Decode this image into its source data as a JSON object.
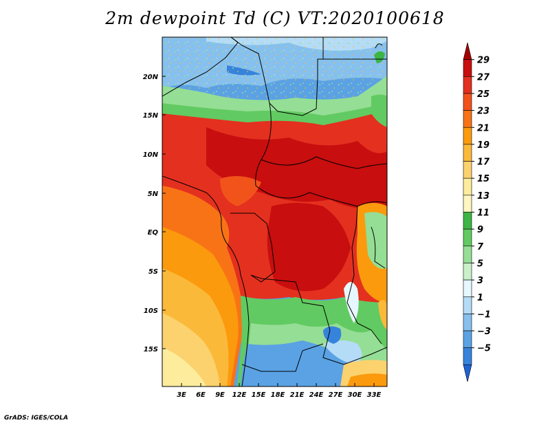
{
  "title": "2m dewpoint Td (C) VT:2020100618",
  "credit": "GrADS: IGES/COLA",
  "map": {
    "lat_labels": [
      {
        "text": "20N",
        "lat": 20
      },
      {
        "text": "15N",
        "lat": 15
      },
      {
        "text": "10N",
        "lat": 10
      },
      {
        "text": "5N",
        "lat": 5
      },
      {
        "text": "EQ",
        "lat": 0
      },
      {
        "text": "5S",
        "lat": -5
      },
      {
        "text": "10S",
        "lat": -10
      },
      {
        "text": "15S",
        "lat": -15
      }
    ],
    "lon_labels": [
      {
        "text": "3E",
        "lon": 3
      },
      {
        "text": "6E",
        "lon": 6
      },
      {
        "text": "9E",
        "lon": 9
      },
      {
        "text": "12E",
        "lon": 12
      },
      {
        "text": "15E",
        "lon": 15
      },
      {
        "text": "18E",
        "lon": 18
      },
      {
        "text": "21E",
        "lon": 21
      },
      {
        "text": "24E",
        "lon": 24
      },
      {
        "text": "27E",
        "lon": 27
      },
      {
        "text": "30E",
        "lon": 30
      },
      {
        "text": "33E",
        "lon": 33
      }
    ],
    "extent": {
      "lon_min": 0,
      "lon_max": 35,
      "lat_min": -20,
      "lat_max": 25
    }
  },
  "colorbar": {
    "labels": [
      "29",
      "27",
      "25",
      "23",
      "21",
      "19",
      "17",
      "15",
      "13",
      "11",
      "9",
      "7",
      "5",
      "3",
      "1",
      "−1",
      "−3",
      "−5"
    ],
    "colors": [
      "#a50000",
      "#c80e0e",
      "#e4301f",
      "#f2531b",
      "#f87316",
      "#fb9a0c",
      "#fbb93a",
      "#fcd26e",
      "#fdec9c",
      "#fff6c0",
      "#3cb544",
      "#62ca62",
      "#95de95",
      "#c9f0c9",
      "#e6f7ff",
      "#b4dcf7",
      "#86c0ee",
      "#5aa2e4",
      "#3683dc",
      "#1f63d2"
    ]
  }
}
